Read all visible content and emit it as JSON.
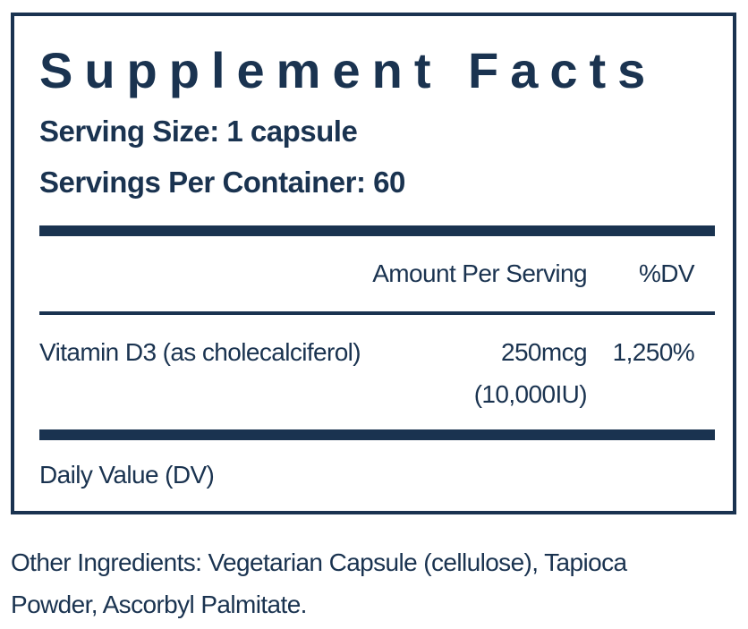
{
  "title": "Supplement Facts",
  "serving_size": "Serving Size: 1 capsule",
  "servings_per_container": "Servings Per Container: 60",
  "table": {
    "header": [
      "Amount Per Serving",
      "%DV"
    ],
    "rows": [
      {
        "name": "Vitamin D3 (as cholecalciferol)",
        "amount": [
          "250mcg",
          "(10,000IU)"
        ],
        "dv": "1,250%"
      }
    ]
  },
  "footnote": "Daily Value (DV)",
  "other_ingredients": "Other Ingredients: Vegetarian Capsule (cellulose), Tapioca Powder, Ascorbyl Palmitate."
}
